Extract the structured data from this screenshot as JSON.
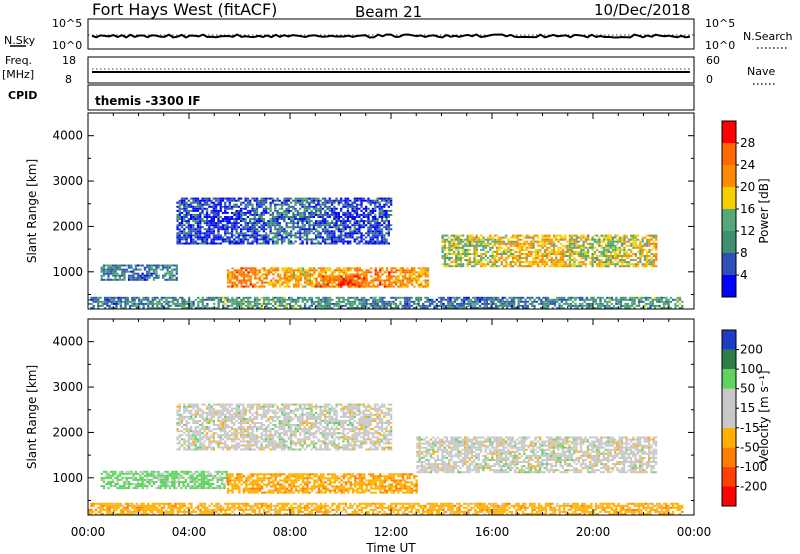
{
  "header": {
    "station": "Fort Hays West (fitACF)",
    "beam": "Beam 21",
    "date": "10/Dec/2018"
  },
  "noise_panel": {
    "left_label": "N.Sky",
    "right_label": "N.Search",
    "ticks": [
      "10^5",
      "10^0"
    ]
  },
  "freq_panel": {
    "left_label_1": "Freq.",
    "left_label_2": "[MHz]",
    "left_ticks": [
      "18",
      "8"
    ],
    "right_ticks": [
      "60",
      "0"
    ],
    "right_label": "Nave"
  },
  "cpid_panel": {
    "label": "CPID",
    "text": "themis -3300 IF"
  },
  "range_panels": {
    "ylabel": "Slant Range [km]",
    "y_ticks": [
      "4000",
      "3000",
      "2000",
      "1000"
    ],
    "ylim": [
      180,
      4500
    ]
  },
  "power_scale": {
    "label": "Power [dB]",
    "ticks": [
      "28",
      "24",
      "20",
      "16",
      "12",
      "8",
      "4"
    ],
    "colors": [
      "#0000ff",
      "#2f4fb8",
      "#3f8f6f",
      "#55a878",
      "#f5cf00",
      "#ff8c00",
      "#ff6a00",
      "#ff0000"
    ]
  },
  "velocity_scale": {
    "label": "Velocity [m s⁻¹]",
    "ticks": [
      "200",
      "100",
      "50",
      "15",
      "-15",
      "-50",
      "-100",
      "-200"
    ],
    "colors": [
      "#1e3cc8",
      "#2e7c46",
      "#5fd35f",
      "#c8c8c8",
      "#c8c8c8",
      "#ffb000",
      "#ff7f00",
      "#ff4000",
      "#ff0000"
    ]
  },
  "x_axis": {
    "label": "Time UT",
    "ticks": [
      "00:00",
      "04:00",
      "08:00",
      "12:00",
      "16:00",
      "20:00",
      "00:00"
    ]
  },
  "chart_data": {
    "type": "heatmap",
    "title": "Fort Hays West (fitACF)  Beam 21  10/Dec/2018",
    "xlabel": "Time UT",
    "ylabel": "Slant Range [km]",
    "xlim": [
      "00:00",
      "24:00"
    ],
    "ylim": [
      180,
      4500
    ],
    "panels": [
      {
        "name": "Power",
        "units": "dB",
        "colorbar_range": [
          0,
          30
        ],
        "echo_bands": [
          {
            "t_start": 0.5,
            "t_end": 3.5,
            "range_km": [
              800,
              1150
            ],
            "value": 8
          },
          {
            "t_start": 5.5,
            "t_end": 13.5,
            "range_km": [
              650,
              1100
            ],
            "value": 22
          },
          {
            "t_start": 9.0,
            "t_end": 11.0,
            "range_km": [
              650,
              900
            ],
            "value": 26
          },
          {
            "t_start": 3.5,
            "t_end": 12.0,
            "range_km": [
              1600,
              2600
            ],
            "value": 6
          },
          {
            "t_start": 14.0,
            "t_end": 22.5,
            "range_km": [
              1100,
              1800
            ],
            "value": 18
          },
          {
            "t_start": 0.0,
            "t_end": 23.5,
            "range_km": [
              180,
              450
            ],
            "value": 10
          }
        ]
      },
      {
        "name": "Velocity",
        "units": "m s⁻¹",
        "colorbar_range": [
          -250,
          250
        ],
        "echo_bands": [
          {
            "t_start": 0.5,
            "t_end": 5.5,
            "range_km": [
              750,
              1150
            ],
            "value": 40
          },
          {
            "t_start": 5.5,
            "t_end": 13.0,
            "range_km": [
              650,
              1100
            ],
            "value": -60
          },
          {
            "t_start": 3.5,
            "t_end": 12.0,
            "range_km": [
              1600,
              2600
            ],
            "value": 0
          },
          {
            "t_start": 13.0,
            "t_end": 22.5,
            "range_km": [
              1100,
              1900
            ],
            "value": 0
          },
          {
            "t_start": 0.0,
            "t_end": 23.5,
            "range_km": [
              180,
              450
            ],
            "value": -50
          }
        ]
      }
    ]
  }
}
